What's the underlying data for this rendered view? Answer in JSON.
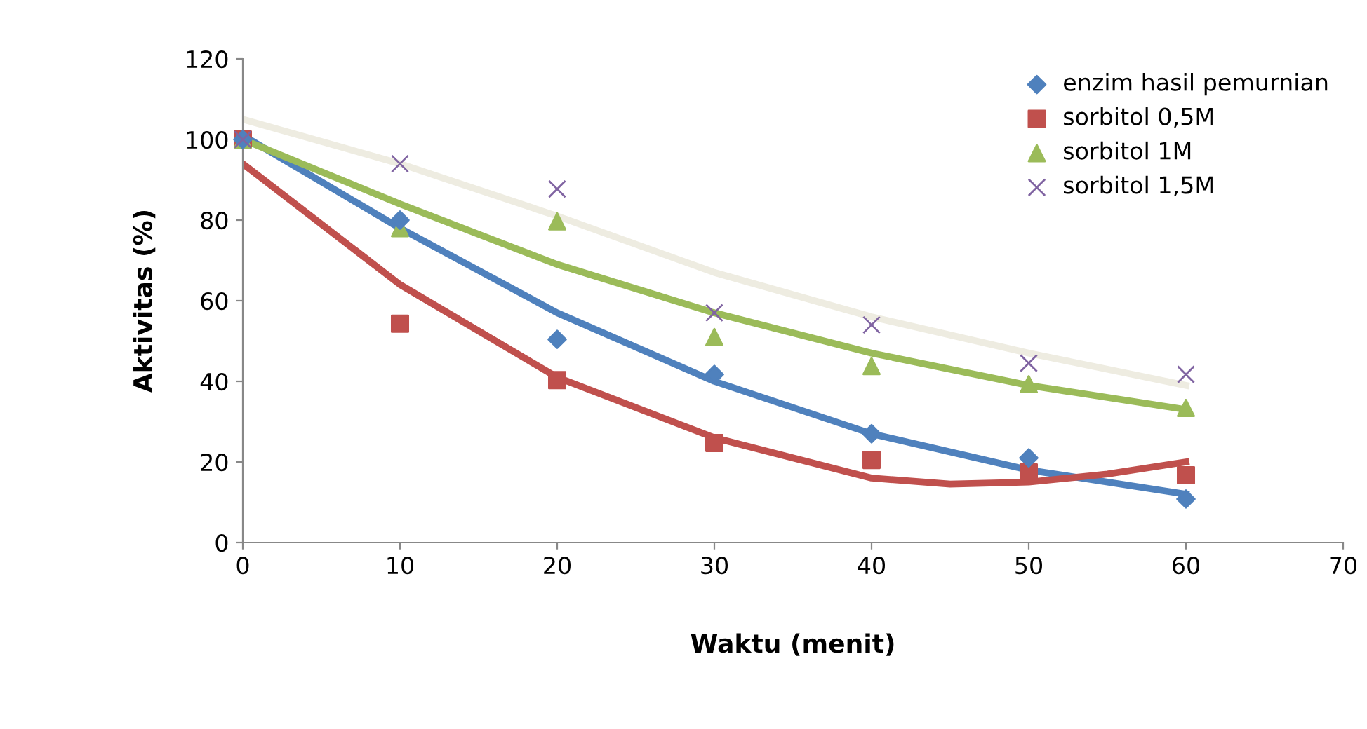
{
  "chart_data": {
    "type": "scatter",
    "xlabel": "Waktu (menit)",
    "ylabel": "Aktivitas (%)",
    "xlim": [
      0,
      70
    ],
    "xticks": [
      0,
      10,
      20,
      30,
      40,
      50,
      60,
      70
    ],
    "ylim": [
      0,
      120
    ],
    "yticks": [
      0,
      20,
      40,
      60,
      80,
      100,
      120
    ],
    "grid": false,
    "legend": "top right",
    "series": [
      {
        "name": "enzim hasil pemurnian",
        "color": "#4f81bd",
        "marker": "diamond",
        "x": [
          0,
          10,
          20,
          30,
          40,
          50,
          60
        ],
        "values": [
          100,
          80,
          50.4,
          41.7,
          27,
          21,
          10.8
        ]
      },
      {
        "name": "sorbitol 0,5M",
        "color": "#c0504d",
        "marker": "square",
        "x": [
          0,
          10,
          20,
          30,
          40,
          50,
          60
        ],
        "values": [
          100,
          54.3,
          40.3,
          24.7,
          20.5,
          17.4,
          16.7
        ]
      },
      {
        "name": "sorbitol 1M",
        "color": "#9bbb59",
        "marker": "triangle",
        "x": [
          0,
          10,
          20,
          30,
          40,
          50,
          60
        ],
        "values": [
          100,
          78,
          79.7,
          51,
          43.8,
          39.3,
          33.4
        ]
      },
      {
        "name": "sorbitol 1,5M",
        "color": "#8064a2",
        "marker": "cross",
        "x": [
          0,
          10,
          20,
          30,
          40,
          50,
          60
        ],
        "values": [
          100,
          94,
          87.7,
          57,
          54,
          44.5,
          41.7
        ]
      },
      {
        "type": "line",
        "color": "#4f81bd",
        "x": [
          0,
          10,
          20,
          30,
          40,
          50,
          60
        ],
        "values": [
          101,
          78,
          57,
          40,
          27,
          18,
          12
        ]
      },
      {
        "type": "line",
        "color": "#c0504d",
        "x": [
          0,
          10,
          20,
          30,
          40,
          45,
          50,
          55,
          60
        ],
        "values": [
          94,
          64,
          41,
          26,
          16,
          14.5,
          15,
          17,
          20
        ]
      },
      {
        "type": "line",
        "color": "#9bbb59",
        "x": [
          0,
          10,
          20,
          30,
          40,
          50,
          60
        ],
        "values": [
          100,
          84,
          69,
          57,
          47,
          39,
          33
        ]
      },
      {
        "type": "line",
        "color": "#eeece1",
        "x": [
          0,
          10,
          20,
          30,
          40,
          50,
          60
        ],
        "values": [
          105,
          94,
          81,
          67,
          56,
          47,
          39
        ]
      }
    ]
  }
}
